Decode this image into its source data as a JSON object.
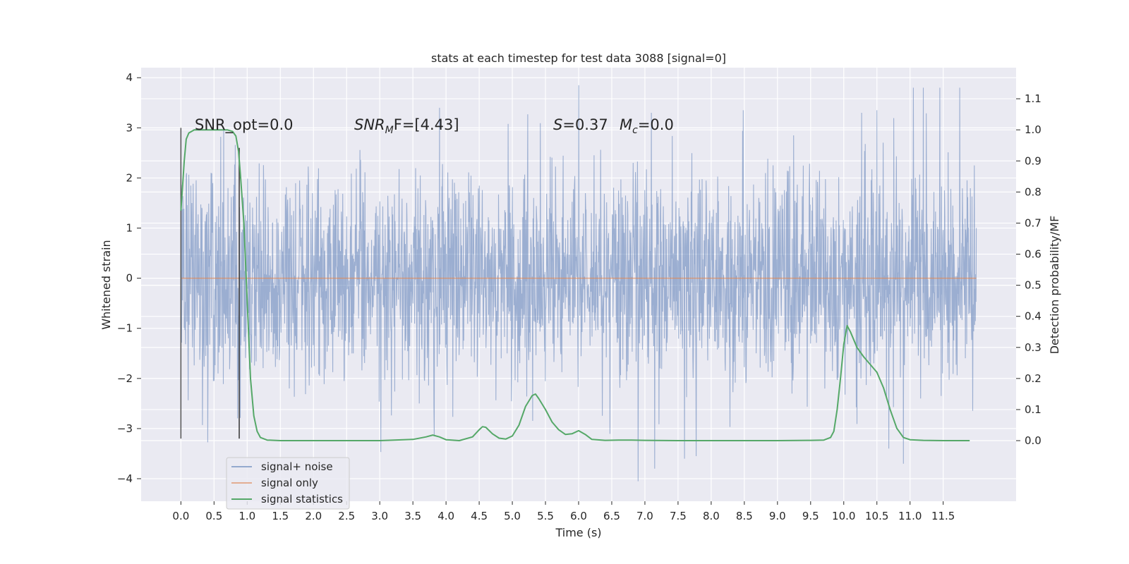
{
  "chart_data": {
    "type": "line",
    "title": "stats at each timestep for test data 3088 [signal=0]",
    "xlabel": "Time (s)",
    "ylabel": "Whitened strain",
    "y2label": "Detection probability/MF",
    "xlim": [
      -0.6,
      12.6
    ],
    "ylim": [
      -4.45,
      4.2
    ],
    "y2lim": [
      -0.195,
      1.2
    ],
    "x_ticks": [
      0.0,
      0.5,
      1.0,
      1.5,
      2.0,
      2.5,
      3.0,
      3.5,
      4.0,
      4.5,
      5.0,
      5.5,
      6.0,
      6.5,
      7.0,
      7.5,
      8.0,
      8.5,
      9.0,
      9.5,
      10.0,
      10.5,
      11.0,
      11.5
    ],
    "x_tick_labels": [
      "0.0",
      "0.5",
      "1.0",
      "1.5",
      "2.0",
      "2.5",
      "3.0",
      "3.5",
      "4.0",
      "4.5",
      "5.0",
      "5.5",
      "6.0",
      "6.5",
      "7.0",
      "7.5",
      "8.0",
      "8.5",
      "9.0",
      "9.5",
      "10.0",
      "10.5",
      "11.0",
      "11.5"
    ],
    "y_ticks": [
      4,
      3,
      2,
      1,
      0,
      -1,
      -2,
      -3,
      -4
    ],
    "y_tick_labels": [
      "4",
      "3",
      "2",
      "1",
      "0",
      "−1",
      "−2",
      "−3",
      "−4"
    ],
    "y2_ticks": [
      1.1,
      1.0,
      0.9,
      0.8,
      0.7,
      0.6,
      0.5,
      0.4,
      0.3,
      0.2,
      0.1,
      0.0
    ],
    "y2_tick_labels": [
      "1.1",
      "1.0",
      "0.9",
      "0.8",
      "0.7",
      "0.6",
      "0.5",
      "0.4",
      "0.3",
      "0.2",
      "0.1",
      "0.0"
    ],
    "grid": true,
    "legend_position": "lower-left",
    "background": "#eaeaf2",
    "annotations": {
      "snr_opt": "SNR_opt=0.0",
      "snr_mf_sym": "SNR",
      "snr_mf_sub": "M",
      "snr_mf_rest": "F=[4.43]",
      "s_sym": "S",
      "s_rest": "=0.37",
      "mc_sym": "M",
      "mc_sub": "c",
      "mc_rest": "=0.0"
    },
    "series": [
      {
        "name": "signal+ noise",
        "color": "#4c72b0",
        "x_range": [
          0.0,
          12.0
        ],
        "y_range": [
          -4.05,
          3.85
        ],
        "notable_peaks": [
          [
            3.9,
            3.4
          ],
          [
            6.0,
            3.85
          ],
          [
            7.1,
            3.3
          ],
          [
            10.5,
            3.35
          ],
          [
            11.05,
            3.8
          ],
          [
            11.2,
            3.8
          ],
          [
            11.45,
            3.8
          ],
          [
            11.75,
            3.8
          ],
          [
            6.9,
            -4.05
          ],
          [
            7.15,
            -3.8
          ],
          [
            10.9,
            -3.7
          ],
          [
            7.6,
            -3.6
          ]
        ]
      },
      {
        "name": "signal only",
        "color": "#dd8452",
        "x": [
          0.0,
          12.0
        ],
        "y": [
          0.0,
          0.0
        ]
      },
      {
        "name": "signal statistics",
        "color": "#55a868",
        "axis": "right",
        "x": [
          0.0,
          0.02,
          0.05,
          0.08,
          0.12,
          0.2,
          0.3,
          0.5,
          0.7,
          0.78,
          0.83,
          0.87,
          0.9,
          0.95,
          1.0,
          1.05,
          1.1,
          1.15,
          1.2,
          1.3,
          1.5,
          2.0,
          2.5,
          3.0,
          3.5,
          3.7,
          3.8,
          3.9,
          4.0,
          4.2,
          4.4,
          4.5,
          4.55,
          4.6,
          4.7,
          4.8,
          4.9,
          5.0,
          5.1,
          5.2,
          5.3,
          5.35,
          5.4,
          5.5,
          5.6,
          5.7,
          5.8,
          5.9,
          6.0,
          6.1,
          6.2,
          6.4,
          6.6,
          6.8,
          7.0,
          7.5,
          8.0,
          8.5,
          9.0,
          9.5,
          9.7,
          9.8,
          9.85,
          9.9,
          9.95,
          10.0,
          10.05,
          10.1,
          10.2,
          10.3,
          10.4,
          10.5,
          10.6,
          10.7,
          10.8,
          10.9,
          11.0,
          11.2,
          11.5,
          11.9
        ],
        "y": [
          0.74,
          0.8,
          0.9,
          0.97,
          0.99,
          1.0,
          1.0,
          1.0,
          1.0,
          0.995,
          0.98,
          0.93,
          0.85,
          0.7,
          0.45,
          0.2,
          0.08,
          0.03,
          0.01,
          0.002,
          0.0,
          0.0,
          0.0,
          0.0,
          0.004,
          0.012,
          0.018,
          0.012,
          0.003,
          0.0,
          0.012,
          0.035,
          0.045,
          0.043,
          0.022,
          0.008,
          0.005,
          0.015,
          0.05,
          0.11,
          0.145,
          0.15,
          0.135,
          0.1,
          0.06,
          0.035,
          0.02,
          0.022,
          0.032,
          0.02,
          0.004,
          0.001,
          0.002,
          0.002,
          0.001,
          0.0,
          0.0,
          0.0,
          0.0,
          0.001,
          0.002,
          0.01,
          0.03,
          0.1,
          0.2,
          0.31,
          0.37,
          0.35,
          0.3,
          0.27,
          0.245,
          0.22,
          0.17,
          0.1,
          0.04,
          0.01,
          0.003,
          0.001,
          0.0,
          0.0
        ]
      }
    ],
    "vertical_markers": [
      {
        "x": 0.0,
        "y_range": [
          -3.2,
          3.0
        ],
        "color": "#555555"
      },
      {
        "x": 0.88,
        "y_range": [
          -3.2,
          2.6
        ],
        "color": "#333333"
      }
    ]
  }
}
